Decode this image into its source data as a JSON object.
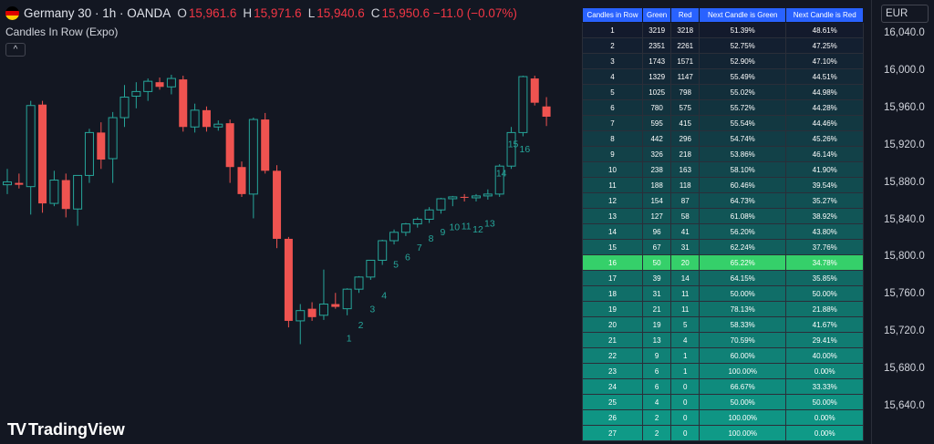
{
  "header": {
    "symbol": "Germany 30 · 1h · OANDA",
    "o_label": "O",
    "o_value": "15,961.6",
    "h_label": "H",
    "h_value": "15,971.6",
    "l_label": "L",
    "l_value": "15,940.6",
    "c_label": "C",
    "c_value": "15,950.6 −11.0 (−0.07%)",
    "indicator": "Candles In Row (Expo)",
    "collapse_icon": "chevron-up-icon"
  },
  "currency": "EUR",
  "logo": {
    "text": "TradingView",
    "mark": "TV"
  },
  "colors": {
    "up": "#26a69a",
    "down": "#ef5350",
    "label": "#26a69a",
    "background": "#131722",
    "header": "#2962ff",
    "highlight": "#35d06a"
  },
  "axis_ticks": [
    "16,040.0",
    "16,000.0",
    "15,960.0",
    "15,920.0",
    "15,880.0",
    "15,840.0",
    "15,800.0",
    "15,760.0",
    "15,720.0",
    "15,680.0",
    "15,640.0"
  ],
  "table": {
    "headers": [
      "Candles in Row",
      "Green",
      "Red",
      "Next Candle is Green",
      "Next Candle is Red"
    ],
    "highlight_row": 16,
    "rows": [
      [
        "1",
        "3219",
        "3218",
        "51.39%",
        "48.61%"
      ],
      [
        "2",
        "2351",
        "2261",
        "52.75%",
        "47.25%"
      ],
      [
        "3",
        "1743",
        "1571",
        "52.90%",
        "47.10%"
      ],
      [
        "4",
        "1329",
        "1147",
        "55.49%",
        "44.51%"
      ],
      [
        "5",
        "1025",
        "798",
        "55.02%",
        "44.98%"
      ],
      [
        "6",
        "780",
        "575",
        "55.72%",
        "44.28%"
      ],
      [
        "7",
        "595",
        "415",
        "55.54%",
        "44.46%"
      ],
      [
        "8",
        "442",
        "296",
        "54.74%",
        "45.26%"
      ],
      [
        "9",
        "326",
        "218",
        "53.86%",
        "46.14%"
      ],
      [
        "10",
        "238",
        "163",
        "58.10%",
        "41.90%"
      ],
      [
        "11",
        "188",
        "118",
        "60.46%",
        "39.54%"
      ],
      [
        "12",
        "154",
        "87",
        "64.73%",
        "35.27%"
      ],
      [
        "13",
        "127",
        "58",
        "61.08%",
        "38.92%"
      ],
      [
        "14",
        "96",
        "41",
        "56.20%",
        "43.80%"
      ],
      [
        "15",
        "67",
        "31",
        "62.24%",
        "37.76%"
      ],
      [
        "16",
        "50",
        "20",
        "65.22%",
        "34.78%"
      ],
      [
        "17",
        "39",
        "14",
        "64.15%",
        "35.85%"
      ],
      [
        "18",
        "31",
        "11",
        "50.00%",
        "50.00%"
      ],
      [
        "19",
        "21",
        "11",
        "78.13%",
        "21.88%"
      ],
      [
        "20",
        "19",
        "5",
        "58.33%",
        "41.67%"
      ],
      [
        "21",
        "13",
        "4",
        "70.59%",
        "29.41%"
      ],
      [
        "22",
        "9",
        "1",
        "60.00%",
        "40.00%"
      ],
      [
        "23",
        "6",
        "1",
        "100.00%",
        "0.00%"
      ],
      [
        "24",
        "6",
        "0",
        "66.67%",
        "33.33%"
      ],
      [
        "25",
        "4",
        "0",
        "50.00%",
        "50.00%"
      ],
      [
        "26",
        "2",
        "0",
        "100.00%",
        "0.00%"
      ],
      [
        "27",
        "2",
        "0",
        "100.00%",
        "0.00%"
      ]
    ]
  },
  "chart_data": {
    "type": "candlestick",
    "ylim": [
      15620,
      16060
    ],
    "y_ticks": [
      16040,
      16000,
      15960,
      15920,
      15880,
      15840,
      15800,
      15760,
      15720,
      15680,
      15640
    ],
    "candles": [
      {
        "o": 15878,
        "h": 15895,
        "l": 15868,
        "c": 15881
      },
      {
        "o": 15880,
        "h": 15890,
        "l": 15874,
        "c": 15878
      },
      {
        "o": 15876,
        "h": 15968,
        "l": 15846,
        "c": 15963
      },
      {
        "o": 15964,
        "h": 15968,
        "l": 15848,
        "c": 15858
      },
      {
        "o": 15858,
        "h": 15893,
        "l": 15855,
        "c": 15883
      },
      {
        "o": 15883,
        "h": 15890,
        "l": 15843,
        "c": 15852
      },
      {
        "o": 15852,
        "h": 15888,
        "l": 15834,
        "c": 15888
      },
      {
        "o": 15888,
        "h": 15938,
        "l": 15880,
        "c": 15934
      },
      {
        "o": 15934,
        "h": 15945,
        "l": 15895,
        "c": 15905
      },
      {
        "o": 15906,
        "h": 15956,
        "l": 15880,
        "c": 15950
      },
      {
        "o": 15950,
        "h": 15985,
        "l": 15940,
        "c": 15972
      },
      {
        "o": 15973,
        "h": 15988,
        "l": 15960,
        "c": 15978
      },
      {
        "o": 15978,
        "h": 15992,
        "l": 15968,
        "c": 15989
      },
      {
        "o": 15988,
        "h": 15993,
        "l": 15980,
        "c": 15983
      },
      {
        "o": 15983,
        "h": 15996,
        "l": 15975,
        "c": 15992
      },
      {
        "o": 15991,
        "h": 15995,
        "l": 15935,
        "c": 15940
      },
      {
        "o": 15940,
        "h": 15965,
        "l": 15934,
        "c": 15958
      },
      {
        "o": 15958,
        "h": 15962,
        "l": 15935,
        "c": 15940
      },
      {
        "o": 15940,
        "h": 15947,
        "l": 15936,
        "c": 15943
      },
      {
        "o": 15944,
        "h": 15948,
        "l": 15880,
        "c": 15897
      },
      {
        "o": 15897,
        "h": 15903,
        "l": 15865,
        "c": 15868
      },
      {
        "o": 15868,
        "h": 15950,
        "l": 15842,
        "c": 15948
      },
      {
        "o": 15948,
        "h": 15955,
        "l": 15890,
        "c": 15893
      },
      {
        "o": 15893,
        "h": 15899,
        "l": 15810,
        "c": 15820
      },
      {
        "o": 15820,
        "h": 15822,
        "l": 15725,
        "c": 15732
      },
      {
        "o": 15732,
        "h": 15750,
        "l": 15707,
        "c": 15743
      },
      {
        "o": 15745,
        "h": 15752,
        "l": 15732,
        "c": 15736
      },
      {
        "o": 15738,
        "h": 15787,
        "l": 15733,
        "c": 15750
      },
      {
        "o": 15750,
        "h": 15762,
        "l": 15745,
        "c": 15747
      },
      {
        "o": 15745,
        "h": 15767,
        "l": 15738,
        "c": 15766
      },
      {
        "o": 15766,
        "h": 15780,
        "l": 15762,
        "c": 15779
      },
      {
        "o": 15779,
        "h": 15797,
        "l": 15776,
        "c": 15797
      },
      {
        "o": 15797,
        "h": 15819,
        "l": 15792,
        "c": 15818
      },
      {
        "o": 15818,
        "h": 15830,
        "l": 15814,
        "c": 15827
      },
      {
        "o": 15827,
        "h": 15837,
        "l": 15823,
        "c": 15836
      },
      {
        "o": 15836,
        "h": 15843,
        "l": 15832,
        "c": 15841
      },
      {
        "o": 15841,
        "h": 15854,
        "l": 15837,
        "c": 15851
      },
      {
        "o": 15851,
        "h": 15864,
        "l": 15847,
        "c": 15863
      },
      {
        "o": 15863,
        "h": 15866,
        "l": 15855,
        "c": 15865
      },
      {
        "o": 15865,
        "h": 15868,
        "l": 15860,
        "c": 15864
      },
      {
        "o": 15864,
        "h": 15868,
        "l": 15860,
        "c": 15866
      },
      {
        "o": 15866,
        "h": 15873,
        "l": 15862,
        "c": 15868
      },
      {
        "o": 15868,
        "h": 15900,
        "l": 15865,
        "c": 15898
      },
      {
        "o": 15898,
        "h": 15940,
        "l": 15895,
        "c": 15934
      },
      {
        "o": 15934,
        "h": 15995,
        "l": 15930,
        "c": 15994
      },
      {
        "o": 15992,
        "h": 15995,
        "l": 15963,
        "c": 15966
      },
      {
        "o": 15962,
        "h": 15972,
        "l": 15941,
        "c": 15951
      }
    ],
    "streak_labels": [
      {
        "candle": 29,
        "text": "1",
        "price": 15710
      },
      {
        "candle": 30,
        "text": "2",
        "price": 15724
      },
      {
        "candle": 31,
        "text": "3",
        "price": 15741
      },
      {
        "candle": 32,
        "text": "4",
        "price": 15756
      },
      {
        "candle": 33,
        "text": "5",
        "price": 15789
      },
      {
        "candle": 34,
        "text": "6",
        "price": 15797
      },
      {
        "candle": 35,
        "text": "7",
        "price": 15807
      },
      {
        "candle": 36,
        "text": "8",
        "price": 15817
      },
      {
        "candle": 37,
        "text": "9",
        "price": 15824
      },
      {
        "candle": 38,
        "text": "10",
        "price": 15829
      },
      {
        "candle": 39,
        "text": "11",
        "price": 15830
      },
      {
        "candle": 40,
        "text": "12",
        "price": 15827
      },
      {
        "candle": 41,
        "text": "13",
        "price": 15833
      },
      {
        "candle": 42,
        "text": "14",
        "price": 15887
      },
      {
        "candle": 43,
        "text": "15",
        "price": 15918
      },
      {
        "candle": 44,
        "text": "16",
        "price": 15913
      }
    ]
  }
}
